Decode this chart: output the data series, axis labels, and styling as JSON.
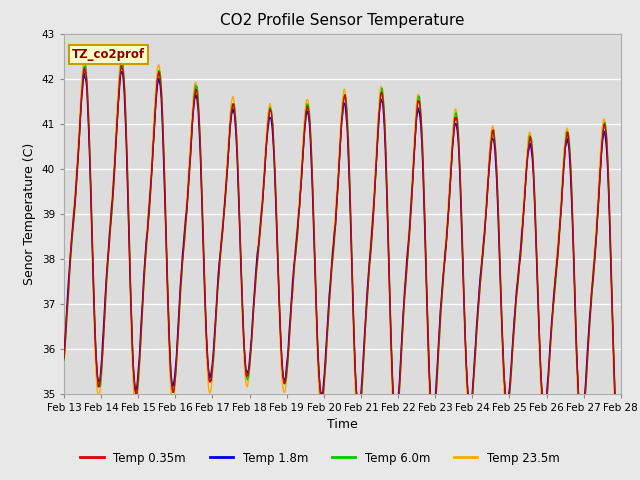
{
  "title": "CO2 Profile Sensor Temperature",
  "xlabel": "Time",
  "ylabel": "Senor Temperature (C)",
  "ylim": [
    35.0,
    43.0
  ],
  "yticks": [
    35.0,
    36.0,
    37.0,
    38.0,
    39.0,
    40.0,
    41.0,
    42.0,
    43.0
  ],
  "background_color": "#e8e8e8",
  "plot_bg_color": "#dcdcdc",
  "legend_label": "TZ_co2prof",
  "legend_box_color": "#ffffcc",
  "legend_box_edge": "#cc9900",
  "series_labels": [
    "Temp 0.35m",
    "Temp 1.8m",
    "Temp 6.0m",
    "Temp 23.5m"
  ],
  "series_colors": [
    "#dd0000",
    "#0000dd",
    "#00cc00",
    "#ffaa00"
  ],
  "line_width": 1.0,
  "n_points": 4000,
  "start_day": 13,
  "end_day": 28,
  "x_tick_labels": [
    "Feb 13",
    "Feb 14",
    "Feb 15",
    "Feb 16",
    "Feb 17",
    "Feb 18",
    "Feb 19",
    "Feb 20",
    "Feb 21",
    "Feb 22",
    "Feb 23",
    "Feb 24",
    "Feb 25",
    "Feb 26",
    "Feb 27",
    "Feb 28"
  ],
  "x_tick_positions": [
    13,
    14,
    15,
    16,
    17,
    18,
    19,
    20,
    21,
    22,
    23,
    24,
    25,
    26,
    27,
    28
  ]
}
